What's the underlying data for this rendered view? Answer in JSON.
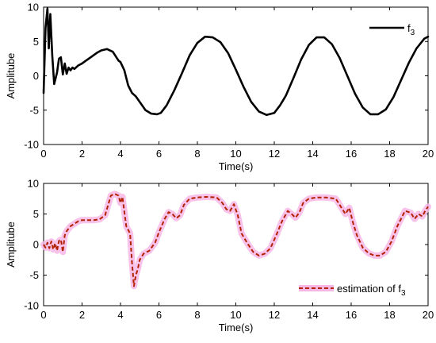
{
  "chart_data": [
    {
      "type": "line",
      "xlabel": "Time(s)",
      "ylabel": "Amplitube",
      "xlim": [
        0,
        20
      ],
      "ylim": [
        -10,
        10
      ],
      "xticks": [
        "0",
        "2",
        "4",
        "6",
        "8",
        "10",
        "12",
        "14",
        "16",
        "18",
        "20"
      ],
      "yticks": [
        "10",
        "5",
        "0",
        "-5",
        "-10"
      ],
      "grid": false,
      "legend": "top-right",
      "legend_entries": [
        {
          "base": "f",
          "sub": "3"
        }
      ],
      "colors": {
        "line": "#000000"
      },
      "series": [
        {
          "x": [
            0,
            0.1,
            0.2,
            0.27,
            0.35,
            0.45,
            0.55,
            0.7,
            0.8,
            0.9,
            1.0,
            1.1,
            1.2,
            1.3,
            1.4,
            1.5,
            1.6,
            1.8,
            2.0,
            2.2,
            2.5,
            2.8,
            3.0,
            3.3,
            3.6,
            3.9,
            4.0,
            4.2,
            4.4,
            4.6,
            4.8,
            5.0,
            5.3,
            5.6,
            5.9,
            6.1,
            6.4,
            6.8,
            7.2,
            7.6,
            8.0,
            8.4,
            8.8,
            9.2,
            9.6,
            10.0,
            10.4,
            10.8,
            11.2,
            11.6,
            12.0,
            12.3,
            12.6,
            13.0,
            13.4,
            13.8,
            14.2,
            14.6,
            15.0,
            15.4,
            15.8,
            16.2,
            16.6,
            17.0,
            17.4,
            17.8,
            18.2,
            18.6,
            19.0,
            19.4,
            19.8,
            20.0
          ],
          "y": [
            -2.5,
            7,
            9.8,
            4,
            9,
            3,
            -1.2,
            0.5,
            2.5,
            2.7,
            0.2,
            1.8,
            0.3,
            1.2,
            0.8,
            1.2,
            1.0,
            1.5,
            1.8,
            2.2,
            2.8,
            3.4,
            3.7,
            3.9,
            3.5,
            2.2,
            2.0,
            0.8,
            -1.4,
            -2.5,
            -3.0,
            -3.8,
            -5.0,
            -5.5,
            -5.6,
            -5.4,
            -4.3,
            -2.1,
            0.4,
            3.0,
            4.8,
            5.7,
            5.6,
            4.9,
            3.3,
            0.9,
            -1.6,
            -3.8,
            -5.2,
            -5.7,
            -5.4,
            -4.3,
            -2.9,
            -0.3,
            2.4,
            4.5,
            5.6,
            5.6,
            4.6,
            2.6,
            0.0,
            -2.6,
            -4.6,
            -5.6,
            -5.6,
            -4.9,
            -3.1,
            -0.6,
            1.9,
            4.0,
            5.4,
            5.7
          ]
        }
      ]
    },
    {
      "type": "line",
      "xlabel": "Time(s)",
      "ylabel": "Amplitube",
      "xlim": [
        0,
        20
      ],
      "ylim": [
        -10,
        10
      ],
      "xticks": [
        "0",
        "2",
        "4",
        "6",
        "8",
        "10",
        "12",
        "14",
        "16",
        "18",
        "20"
      ],
      "yticks": [
        "10",
        "5",
        "0",
        "-5",
        "-10"
      ],
      "grid": false,
      "legend": "bottom-right",
      "legend_entries": [
        {
          "base": "estimation of f",
          "sub": "3"
        }
      ],
      "colors": {
        "line": "#b22200",
        "band": "#f7b7e6"
      },
      "series": [
        {
          "x": [
            0,
            0.1,
            0.2,
            0.3,
            0.4,
            0.5,
            0.6,
            0.7,
            0.8,
            0.9,
            1.0,
            1.1,
            1.2,
            1.4,
            1.6,
            1.8,
            2.0,
            2.3,
            2.6,
            2.9,
            3.2,
            3.5,
            3.7,
            3.9,
            4.0,
            4.1,
            4.3,
            4.5,
            4.6,
            4.7,
            4.8,
            4.9,
            5.0,
            5.2,
            5.5,
            5.8,
            6.0,
            6.3,
            6.5,
            6.7,
            6.9,
            7.1,
            7.3,
            7.6,
            8.0,
            8.5,
            9.0,
            9.3,
            9.5,
            9.7,
            9.9,
            10.1,
            10.3,
            10.6,
            10.9,
            11.2,
            11.5,
            11.8,
            12.1,
            12.4,
            12.7,
            12.9,
            13.1,
            13.3,
            13.5,
            13.8,
            14.2,
            14.7,
            15.2,
            15.5,
            15.7,
            15.9,
            16.1,
            16.3,
            16.6,
            16.9,
            17.2,
            17.5,
            17.8,
            18.1,
            18.4,
            18.8,
            19.1,
            19.3,
            19.5,
            19.7,
            19.85,
            20.0
          ],
          "y": [
            0,
            -0.5,
            0.3,
            -0.6,
            0.5,
            -0.8,
            0.2,
            -1.0,
            0.6,
            0.8,
            -1.2,
            1.5,
            2.2,
            3.0,
            3.4,
            3.8,
            4.0,
            4.0,
            4.0,
            4.1,
            4.8,
            8.0,
            8.3,
            8.0,
            6.8,
            7.8,
            3.0,
            1.8,
            -3.0,
            -6.8,
            -5.0,
            -4.0,
            -2.5,
            -1.5,
            -1.0,
            0.3,
            2.0,
            4.2,
            5.3,
            5.0,
            4.3,
            4.8,
            6.5,
            7.5,
            7.7,
            7.8,
            7.7,
            6.8,
            5.8,
            5.5,
            6.6,
            4.8,
            1.8,
            0.2,
            -1.2,
            -1.8,
            -1.5,
            -0.6,
            1.5,
            3.8,
            5.5,
            5.0,
            4.4,
            5.2,
            6.8,
            7.5,
            7.7,
            7.7,
            7.5,
            6.0,
            5.0,
            6.0,
            3.5,
            1.5,
            -0.5,
            -1.4,
            -1.8,
            -1.8,
            -1.2,
            0.5,
            3.0,
            5.5,
            5.2,
            4.2,
            5.0,
            4.6,
            5.5,
            6.2
          ]
        }
      ]
    }
  ]
}
